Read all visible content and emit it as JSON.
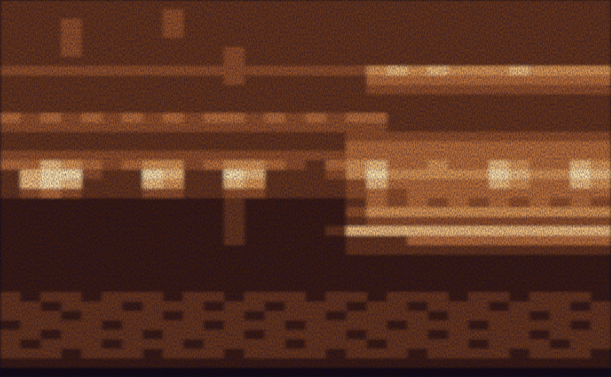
{
  "chart_data": {
    "type": "heatmap",
    "tick_labels": false,
    "values": [
      [
        4,
        4,
        4,
        4,
        4,
        4,
        4,
        4,
        4,
        4,
        4,
        4,
        4,
        4,
        4,
        4,
        4,
        4,
        4,
        4,
        4,
        4,
        4,
        4,
        4,
        4,
        4,
        4,
        4,
        4
      ],
      [
        4,
        4,
        4,
        4,
        4,
        4,
        4,
        4,
        5,
        4,
        4,
        4,
        4,
        4,
        4,
        4,
        4,
        4,
        4,
        4,
        4,
        4,
        4,
        4,
        4,
        4,
        4,
        4,
        4,
        4
      ],
      [
        4,
        4,
        4,
        5,
        4,
        4,
        4,
        4,
        5,
        4,
        4,
        4,
        4,
        4,
        4,
        4,
        4,
        4,
        4,
        4,
        4,
        4,
        4,
        4,
        4,
        4,
        4,
        4,
        4,
        4
      ],
      [
        4,
        4,
        4,
        5,
        4,
        4,
        4,
        4,
        5,
        4,
        4,
        4,
        4,
        4,
        4,
        4,
        4,
        4,
        4,
        4,
        4,
        4,
        4,
        4,
        4,
        4,
        4,
        4,
        4,
        4
      ],
      [
        4,
        4,
        4,
        5,
        4,
        4,
        4,
        4,
        4,
        4,
        4,
        4,
        4,
        4,
        4,
        4,
        4,
        4,
        4,
        4,
        4,
        4,
        4,
        4,
        4,
        4,
        4,
        4,
        4,
        4
      ],
      [
        4,
        4,
        4,
        5,
        4,
        4,
        4,
        4,
        4,
        4,
        4,
        5,
        4,
        4,
        4,
        4,
        4,
        4,
        4,
        4,
        4,
        4,
        4,
        4,
        4,
        4,
        4,
        4,
        4,
        4
      ],
      [
        4,
        4,
        4,
        4,
        4,
        4,
        4,
        4,
        4,
        4,
        4,
        5,
        4,
        4,
        4,
        4,
        4,
        4,
        4,
        4,
        4,
        4,
        4,
        4,
        4,
        4,
        4,
        4,
        4,
        4
      ],
      [
        5,
        5,
        5,
        5,
        5,
        5,
        5,
        5,
        5,
        5,
        5,
        5,
        5,
        5,
        5,
        5,
        5,
        5,
        7,
        8,
        7,
        8,
        7,
        7,
        7,
        8,
        7,
        7,
        7,
        7
      ],
      [
        4,
        4,
        4,
        4,
        4,
        4,
        4,
        4,
        4,
        4,
        4,
        5,
        4,
        4,
        4,
        4,
        4,
        4,
        6,
        6,
        6,
        6,
        6,
        6,
        6,
        6,
        6,
        6,
        6,
        6
      ],
      [
        4,
        4,
        4,
        4,
        4,
        4,
        4,
        4,
        4,
        4,
        4,
        4,
        4,
        4,
        4,
        4,
        4,
        4,
        5,
        5,
        5,
        5,
        5,
        5,
        5,
        5,
        5,
        5,
        5,
        5
      ],
      [
        4,
        4,
        4,
        4,
        4,
        4,
        4,
        4,
        4,
        4,
        4,
        4,
        4,
        4,
        4,
        4,
        4,
        4,
        4,
        4,
        4,
        4,
        4,
        4,
        4,
        4,
        4,
        4,
        4,
        4
      ],
      [
        4,
        4,
        4,
        4,
        4,
        4,
        4,
        4,
        4,
        4,
        4,
        4,
        4,
        4,
        4,
        4,
        4,
        4,
        4,
        4,
        4,
        4,
        4,
        4,
        4,
        4,
        4,
        4,
        4,
        4
      ],
      [
        6,
        5,
        6,
        5,
        6,
        5,
        6,
        5,
        6,
        5,
        6,
        6,
        5,
        6,
        5,
        6,
        5,
        6,
        6,
        4,
        4,
        4,
        4,
        4,
        4,
        4,
        4,
        4,
        4,
        4
      ],
      [
        5,
        5,
        5,
        5,
        5,
        5,
        5,
        5,
        5,
        5,
        5,
        5,
        5,
        5,
        5,
        5,
        5,
        5,
        5,
        4,
        4,
        4,
        4,
        4,
        4,
        4,
        4,
        4,
        4,
        4
      ],
      [
        4,
        4,
        4,
        4,
        4,
        4,
        4,
        4,
        4,
        4,
        4,
        4,
        4,
        4,
        4,
        4,
        4,
        5,
        5,
        5,
        5,
        5,
        5,
        5,
        5,
        5,
        5,
        5,
        5,
        5
      ],
      [
        4,
        4,
        4,
        4,
        4,
        4,
        4,
        4,
        4,
        4,
        4,
        4,
        4,
        4,
        4,
        4,
        4,
        6,
        6,
        6,
        6,
        6,
        6,
        6,
        6,
        6,
        6,
        6,
        6,
        6
      ],
      [
        5,
        5,
        5,
        5,
        5,
        5,
        5,
        5,
        5,
        5,
        5,
        5,
        5,
        5,
        5,
        5,
        5,
        6,
        6,
        6,
        6,
        6,
        6,
        6,
        6,
        6,
        6,
        6,
        6,
        6
      ],
      [
        6,
        6,
        8,
        7,
        6,
        5,
        6,
        7,
        7,
        5,
        6,
        7,
        7,
        6,
        5,
        4,
        6,
        7,
        8,
        6,
        6,
        7,
        6,
        6,
        8,
        7,
        6,
        6,
        8,
        7
      ],
      [
        4,
        8,
        9,
        9,
        5,
        4,
        4,
        9,
        8,
        4,
        4,
        9,
        8,
        4,
        4,
        4,
        5,
        7,
        9,
        7,
        7,
        7,
        7,
        7,
        9,
        8,
        7,
        7,
        9,
        8
      ],
      [
        4,
        8,
        9,
        8,
        4,
        4,
        4,
        8,
        7,
        4,
        4,
        8,
        7,
        4,
        4,
        4,
        4,
        5,
        8,
        6,
        6,
        6,
        6,
        6,
        8,
        7,
        6,
        6,
        8,
        7
      ],
      [
        4,
        5,
        6,
        5,
        4,
        4,
        4,
        5,
        5,
        4,
        4,
        5,
        5,
        4,
        4,
        4,
        4,
        5,
        6,
        5,
        6,
        6,
        6,
        6,
        6,
        6,
        6,
        6,
        6,
        6
      ],
      [
        3,
        3,
        3,
        3,
        3,
        3,
        3,
        3,
        3,
        3,
        3,
        4,
        3,
        3,
        3,
        3,
        3,
        4,
        6,
        5,
        6,
        5,
        6,
        5,
        6,
        5,
        6,
        5,
        6,
        5
      ],
      [
        3,
        3,
        3,
        3,
        3,
        3,
        3,
        3,
        3,
        3,
        3,
        4,
        3,
        3,
        3,
        3,
        3,
        5,
        7,
        7,
        7,
        7,
        7,
        7,
        7,
        7,
        7,
        7,
        7,
        7
      ],
      [
        3,
        3,
        3,
        3,
        3,
        3,
        3,
        3,
        3,
        3,
        3,
        4,
        3,
        3,
        3,
        3,
        3,
        4,
        5,
        5,
        5,
        5,
        5,
        5,
        5,
        5,
        5,
        5,
        5,
        5
      ],
      [
        3,
        3,
        3,
        3,
        3,
        3,
        3,
        3,
        3,
        3,
        3,
        4,
        3,
        3,
        3,
        3,
        4,
        8,
        8,
        8,
        8,
        8,
        8,
        8,
        8,
        8,
        8,
        8,
        8,
        8
      ],
      [
        3,
        3,
        3,
        3,
        3,
        3,
        3,
        3,
        3,
        3,
        3,
        4,
        3,
        3,
        3,
        3,
        3,
        4,
        4,
        4,
        6,
        6,
        6,
        6,
        6,
        6,
        6,
        6,
        6,
        6
      ],
      [
        3,
        3,
        3,
        3,
        3,
        3,
        3,
        3,
        3,
        3,
        3,
        3,
        3,
        3,
        3,
        3,
        3,
        4,
        4,
        4,
        4,
        4,
        4,
        4,
        4,
        4,
        4,
        4,
        4,
        4
      ],
      [
        3,
        3,
        3,
        3,
        3,
        3,
        3,
        3,
        3,
        3,
        3,
        3,
        3,
        3,
        3,
        3,
        3,
        3,
        3,
        3,
        3,
        3,
        3,
        3,
        3,
        3,
        3,
        3,
        3,
        3
      ],
      [
        3,
        3,
        3,
        3,
        3,
        3,
        3,
        3,
        3,
        3,
        3,
        3,
        3,
        3,
        3,
        3,
        3,
        3,
        3,
        3,
        3,
        3,
        3,
        3,
        3,
        3,
        3,
        3,
        3,
        3
      ],
      [
        3,
        3,
        3,
        3,
        3,
        3,
        3,
        3,
        3,
        3,
        3,
        3,
        3,
        3,
        3,
        3,
        3,
        3,
        3,
        3,
        3,
        3,
        3,
        3,
        3,
        3,
        3,
        3,
        3,
        3
      ],
      [
        3,
        3,
        3,
        3,
        3,
        3,
        3,
        3,
        3,
        3,
        3,
        3,
        3,
        3,
        3,
        3,
        3,
        3,
        3,
        3,
        3,
        3,
        3,
        3,
        3,
        3,
        3,
        3,
        3,
        3
      ],
      [
        4,
        3,
        4,
        4,
        3,
        4,
        4,
        4,
        3,
        4,
        4,
        3,
        4,
        4,
        4,
        3,
        4,
        4,
        3,
        4,
        4,
        4,
        3,
        4,
        4,
        3,
        4,
        4,
        4,
        3
      ],
      [
        4,
        4,
        3,
        4,
        4,
        4,
        3,
        4,
        4,
        4,
        3,
        4,
        4,
        3,
        4,
        4,
        4,
        3,
        4,
        4,
        3,
        4,
        4,
        4,
        3,
        4,
        4,
        4,
        3,
        4
      ],
      [
        4,
        4,
        4,
        3,
        4,
        4,
        4,
        4,
        3,
        4,
        4,
        4,
        3,
        4,
        4,
        4,
        3,
        4,
        4,
        4,
        4,
        3,
        4,
        4,
        4,
        4,
        3,
        4,
        4,
        4
      ],
      [
        3,
        4,
        4,
        4,
        4,
        3,
        4,
        4,
        4,
        4,
        3,
        4,
        4,
        4,
        3,
        4,
        4,
        4,
        4,
        3,
        4,
        4,
        4,
        3,
        4,
        4,
        4,
        4,
        3,
        4
      ],
      [
        4,
        4,
        3,
        4,
        4,
        4,
        4,
        3,
        4,
        4,
        4,
        4,
        3,
        4,
        4,
        4,
        4,
        3,
        4,
        4,
        4,
        3,
        4,
        4,
        4,
        4,
        3,
        4,
        4,
        4
      ],
      [
        4,
        3,
        4,
        4,
        4,
        3,
        4,
        4,
        4,
        3,
        4,
        4,
        4,
        4,
        3,
        4,
        4,
        4,
        3,
        4,
        4,
        4,
        4,
        3,
        4,
        4,
        4,
        3,
        4,
        4
      ],
      [
        4,
        4,
        4,
        3,
        4,
        4,
        4,
        3,
        4,
        4,
        4,
        3,
        4,
        4,
        4,
        4,
        3,
        4,
        4,
        4,
        3,
        4,
        4,
        4,
        4,
        3,
        4,
        4,
        4,
        3
      ],
      [
        3,
        3,
        3,
        3,
        3,
        3,
        3,
        3,
        3,
        3,
        3,
        3,
        3,
        3,
        3,
        3,
        3,
        3,
        3,
        3,
        3,
        3,
        3,
        3,
        3,
        3,
        3,
        3,
        3,
        3
      ],
      [
        2,
        2,
        2,
        2,
        2,
        2,
        2,
        2,
        2,
        2,
        2,
        2,
        2,
        2,
        2,
        2,
        2,
        2,
        2,
        2,
        2,
        2,
        2,
        2,
        2,
        2,
        2,
        2,
        2,
        2
      ]
    ]
  }
}
